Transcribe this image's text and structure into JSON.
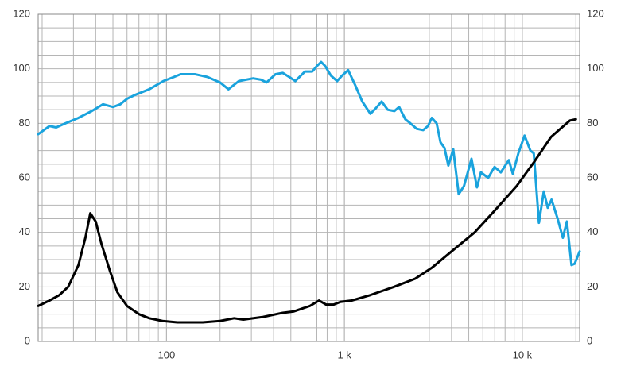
{
  "chart_data": {
    "type": "line",
    "xscale": "log",
    "grid": true,
    "xlim": [
      19,
      21000
    ],
    "ylim": [
      0,
      120
    ],
    "y2lim": [
      0,
      120
    ],
    "xticks": [
      100,
      {
        "value": 1000,
        "label": "1 k"
      },
      {
        "value": 10000,
        "label": "10 k"
      }
    ],
    "yticks": [
      0,
      20,
      40,
      60,
      80,
      100,
      120
    ],
    "y2ticks": [
      0,
      20,
      40,
      60,
      80,
      100,
      120
    ],
    "series": [
      {
        "color": "#1aa3dd",
        "x": [
          19,
          22,
          24,
          27,
          32,
          38,
          44,
          50,
          55,
          60,
          67,
          80,
          96,
          110,
          120,
          145,
          170,
          200,
          223,
          255,
          307,
          340,
          365,
          410,
          450,
          490,
          530,
          600,
          660,
          700,
          740,
          780,
          840,
          910,
          970,
          1050,
          1150,
          1260,
          1400,
          1500,
          1620,
          1750,
          1910,
          2030,
          2200,
          2350,
          2550,
          2770,
          2950,
          3100,
          3300,
          3470,
          3650,
          3840,
          4090,
          4390,
          4700,
          5180,
          5560,
          5850,
          6430,
          6980,
          7570,
          8400,
          8840,
          9500,
          10300,
          11100,
          11600,
          12400,
          13200,
          13900,
          14600,
          15800,
          16900,
          17800,
          18900,
          19700,
          21000
        ],
        "values": [
          76,
          79,
          78.5,
          80,
          82,
          84.5,
          87,
          86,
          87,
          89,
          90.5,
          92.5,
          95.5,
          97,
          98,
          98,
          97,
          95,
          92.5,
          95.5,
          96.5,
          96,
          95,
          98,
          98.5,
          97,
          95.5,
          99,
          99,
          101,
          102.5,
          101,
          97.5,
          95.5,
          97.5,
          99.5,
          94,
          88,
          83.5,
          85.5,
          88,
          85,
          84.5,
          86,
          81.5,
          80,
          78,
          77.5,
          79,
          82,
          80,
          73,
          71,
          64.5,
          70.5,
          54,
          57,
          67,
          56.5,
          62,
          60,
          64,
          62,
          66.5,
          61.5,
          69,
          75.5,
          70,
          69,
          43.5,
          55,
          49,
          52,
          45,
          38,
          44,
          28,
          28.5,
          33
        ]
      },
      {
        "color": "#000000",
        "x": [
          19,
          22,
          25,
          28,
          32,
          35,
          37.3,
          40,
          43,
          48,
          53,
          60,
          70,
          80,
          95,
          115,
          160,
          200,
          240,
          270,
          350,
          450,
          520,
          640,
          720,
          790,
          870,
          950,
          1100,
          1400,
          1900,
          2500,
          3100,
          4000,
          5400,
          7000,
          9300,
          11700,
          14500,
          18500,
          20000
        ],
        "values": [
          13,
          15,
          17,
          20,
          28,
          38,
          47,
          44,
          36,
          26,
          18,
          13,
          10,
          8.5,
          7.5,
          7,
          7,
          7.5,
          8.5,
          8,
          9,
          10.5,
          11,
          13,
          15,
          13.5,
          13.5,
          14.5,
          15,
          17,
          20,
          23,
          27,
          33,
          40,
          48,
          57,
          66,
          75,
          81,
          81.5
        ]
      }
    ]
  }
}
